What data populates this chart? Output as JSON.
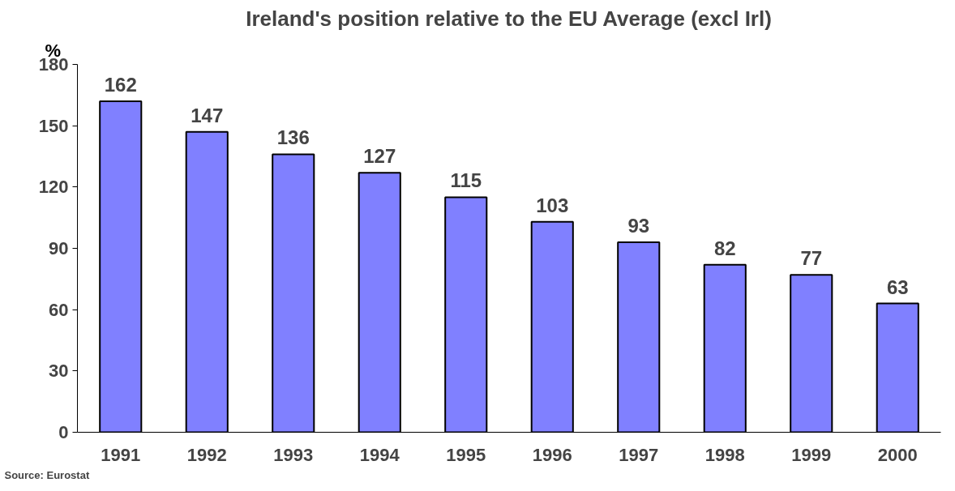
{
  "chart_data": {
    "type": "bar",
    "title": "Ireland's position relative to the EU Average (excl Irl)",
    "ylabel": "%",
    "categories": [
      "1991",
      "1992",
      "1993",
      "1994",
      "1995",
      "1996",
      "1997",
      "1998",
      "1999",
      "2000"
    ],
    "values": [
      162,
      147,
      136,
      127,
      115,
      103,
      93,
      82,
      77,
      63
    ],
    "color": "#8080ff",
    "ylim": [
      0,
      180
    ],
    "yticks": [
      0,
      30,
      60,
      90,
      120,
      150,
      180
    ],
    "grid": false,
    "data_labels": true,
    "annotations": [
      "Source: Eurostat"
    ]
  }
}
